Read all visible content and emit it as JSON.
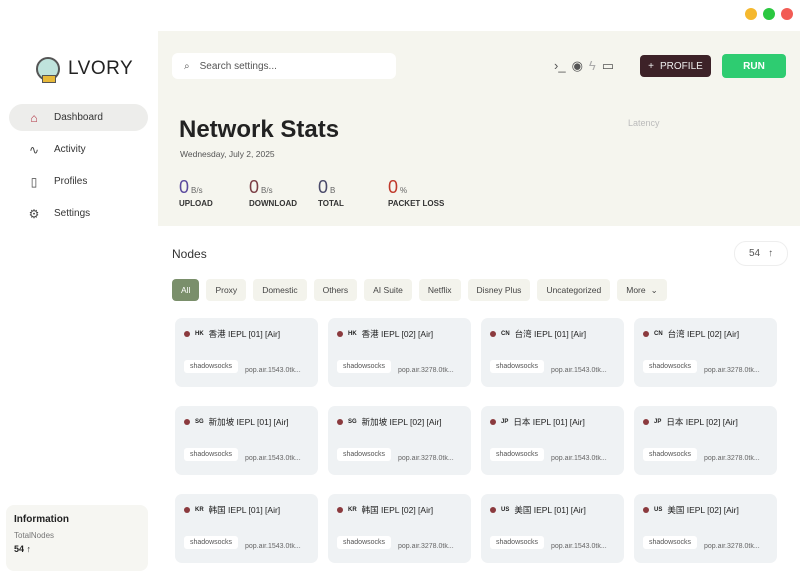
{
  "window": {
    "controls": {
      "minimize_color": "#f5b82e",
      "maximize_color": "#2bc840",
      "close_color": "#f25c55"
    }
  },
  "app": {
    "name": "LVORY"
  },
  "sidebar": {
    "items": [
      {
        "label": "Dashboard",
        "icon": "home-icon",
        "active": true
      },
      {
        "label": "Activity",
        "icon": "activity-icon"
      },
      {
        "label": "Profiles",
        "icon": "file-icon"
      },
      {
        "label": "Settings",
        "icon": "gear-icon"
      }
    ],
    "info": {
      "title": "Information",
      "key": "TotalNodes",
      "value": "54 ↑"
    }
  },
  "header": {
    "search_placeholder": "Search settings...",
    "profile_label": "PROFILE",
    "run_label": "RUN"
  },
  "stats": {
    "title": "Network Stats",
    "date": "Wednesday, July 2, 2025",
    "latency_label": "Latency",
    "items": [
      {
        "value": "0",
        "unit": "B/s",
        "label": "UPLOAD",
        "color": "#5b4a9e"
      },
      {
        "value": "0",
        "unit": "B/s",
        "label": "DOWNLOAD",
        "color": "#7a3d44"
      },
      {
        "value": "0",
        "unit": "B",
        "label": "TOTAL",
        "color": "#4a4a6a"
      },
      {
        "value": "0",
        "unit": "%",
        "label": "PACKET LOSS",
        "color": "#c0392b"
      }
    ]
  },
  "nodes": {
    "title": "Nodes",
    "count": "54",
    "filters": [
      "All",
      "Proxy",
      "Domestic",
      "Others",
      "AI Suite",
      "Netflix",
      "Disney Plus",
      "Uncategorized",
      "More"
    ],
    "items": [
      {
        "cc": "HK",
        "name": "香港 IEPL [01] [Air]",
        "protocol": "shadowsocks",
        "server": "pop.air.1543.0tk..."
      },
      {
        "cc": "HK",
        "name": "香港 IEPL [02] [Air]",
        "protocol": "shadowsocks",
        "server": "pop.air.3278.0tk..."
      },
      {
        "cc": "CN",
        "name": "台湾 IEPL [01] [Air]",
        "protocol": "shadowsocks",
        "server": "pop.air.1543.0tk..."
      },
      {
        "cc": "CN",
        "name": "台湾 IEPL [02] [Air]",
        "protocol": "shadowsocks",
        "server": "pop.air.3278.0tk..."
      },
      {
        "cc": "SG",
        "name": "新加坡 IEPL [01] [Air]",
        "protocol": "shadowsocks",
        "server": "pop.air.1543.0tk..."
      },
      {
        "cc": "SG",
        "name": "新加坡 IEPL [02] [Air]",
        "protocol": "shadowsocks",
        "server": "pop.air.3278.0tk..."
      },
      {
        "cc": "JP",
        "name": "日本 IEPL [01] [Air]",
        "protocol": "shadowsocks",
        "server": "pop.air.1543.0tk..."
      },
      {
        "cc": "JP",
        "name": "日本 IEPL [02] [Air]",
        "protocol": "shadowsocks",
        "server": "pop.air.3278.0tk..."
      },
      {
        "cc": "KR",
        "name": "韩国 IEPL [01] [Air]",
        "protocol": "shadowsocks",
        "server": "pop.air.1543.0tk..."
      },
      {
        "cc": "KR",
        "name": "韩国 IEPL [02] [Air]",
        "protocol": "shadowsocks",
        "server": "pop.air.3278.0tk..."
      },
      {
        "cc": "US",
        "name": "美国 IEPL [01] [Air]",
        "protocol": "shadowsocks",
        "server": "pop.air.1543.0tk..."
      },
      {
        "cc": "US",
        "name": "美国 IEPL [02] [Air]",
        "protocol": "shadowsocks",
        "server": "pop.air.3278.0tk..."
      }
    ]
  }
}
